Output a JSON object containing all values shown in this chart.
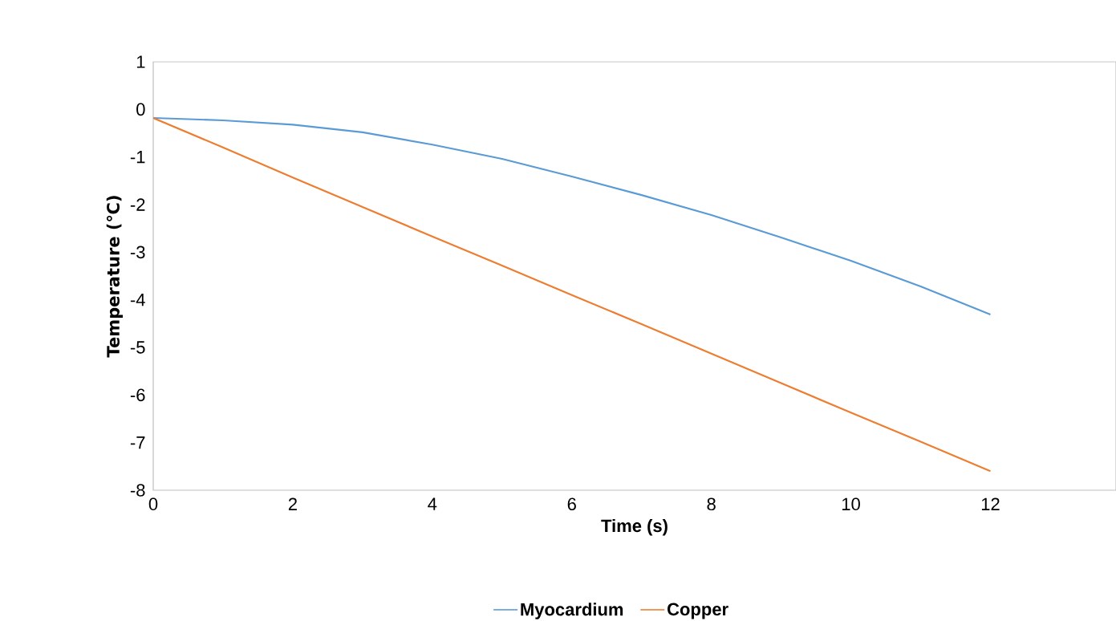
{
  "chart_data": {
    "type": "line",
    "xlabel": "Time (s)",
    "ylabel": "Temperature (℃)",
    "x": [
      0,
      1,
      2,
      3,
      4,
      5,
      6,
      7,
      8,
      9,
      10,
      11,
      12
    ],
    "series": [
      {
        "name": "Myocardium",
        "color": "#5b9bd5",
        "values": [
          -0.18,
          -0.23,
          -0.32,
          -0.48,
          -0.74,
          -1.04,
          -1.41,
          -1.8,
          -2.22,
          -2.69,
          -3.18,
          -3.72,
          -4.31
        ]
      },
      {
        "name": "Copper",
        "color": "#ed7d31",
        "values": [
          -0.18,
          -0.8,
          -1.43,
          -2.05,
          -2.67,
          -3.28,
          -3.9,
          -4.51,
          -5.13,
          -5.75,
          -6.37,
          -6.98,
          -7.6
        ]
      }
    ],
    "xlim": [
      0,
      13.8
    ],
    "xticks": [
      0,
      2,
      4,
      6,
      8,
      10,
      12
    ],
    "ylim": [
      -8,
      1
    ],
    "yticks": [
      -8,
      -7,
      -6,
      -5,
      -4,
      -3,
      -2,
      -1,
      0,
      1
    ],
    "grid": false,
    "legend": "bottom",
    "marker": "none",
    "line_style": "solid"
  }
}
